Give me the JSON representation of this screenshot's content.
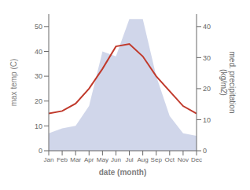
{
  "chart_data": {
    "type": "line",
    "x": [
      1,
      2,
      3,
      4,
      5,
      6,
      7,
      8,
      9,
      10,
      11,
      12
    ],
    "xlim": [
      1,
      12
    ],
    "xticks": [
      {
        "value": 1,
        "label": "Jan"
      },
      {
        "value": 2,
        "label": "Feb"
      },
      {
        "value": 3,
        "label": "Mar"
      },
      {
        "value": 4,
        "label": "Apr"
      },
      {
        "value": 5,
        "label": "May"
      },
      {
        "value": 6,
        "label": "Jun"
      },
      {
        "value": 7,
        "label": "Jul"
      },
      {
        "value": 8,
        "label": "Aug"
      },
      {
        "value": 9,
        "label": "Sep"
      },
      {
        "value": 10,
        "label": "Oct"
      },
      {
        "value": 11,
        "label": "Nov"
      },
      {
        "value": 12,
        "label": "Dec"
      }
    ],
    "xlabel": "date (month)",
    "ylabel": "max temp (C)",
    "ylim": [
      0,
      55
    ],
    "yticks": [
      0,
      10,
      20,
      30,
      40,
      50
    ],
    "y2label": "med. precipitation\n(kg/m2)",
    "y2lim": [
      0,
      44
    ],
    "y2ticks": [
      0,
      10,
      20,
      30,
      40
    ],
    "series": [
      {
        "type": "area",
        "color": "#aab4d8",
        "values": [
          7,
          9,
          10,
          18,
          40,
          38,
          53,
          53,
          30,
          14,
          7,
          6
        ]
      },
      {
        "type": "line",
        "color": "#c0392b",
        "values": [
          15,
          16,
          19,
          25,
          33,
          42,
          43,
          38,
          30,
          24,
          18,
          15
        ]
      }
    ]
  }
}
